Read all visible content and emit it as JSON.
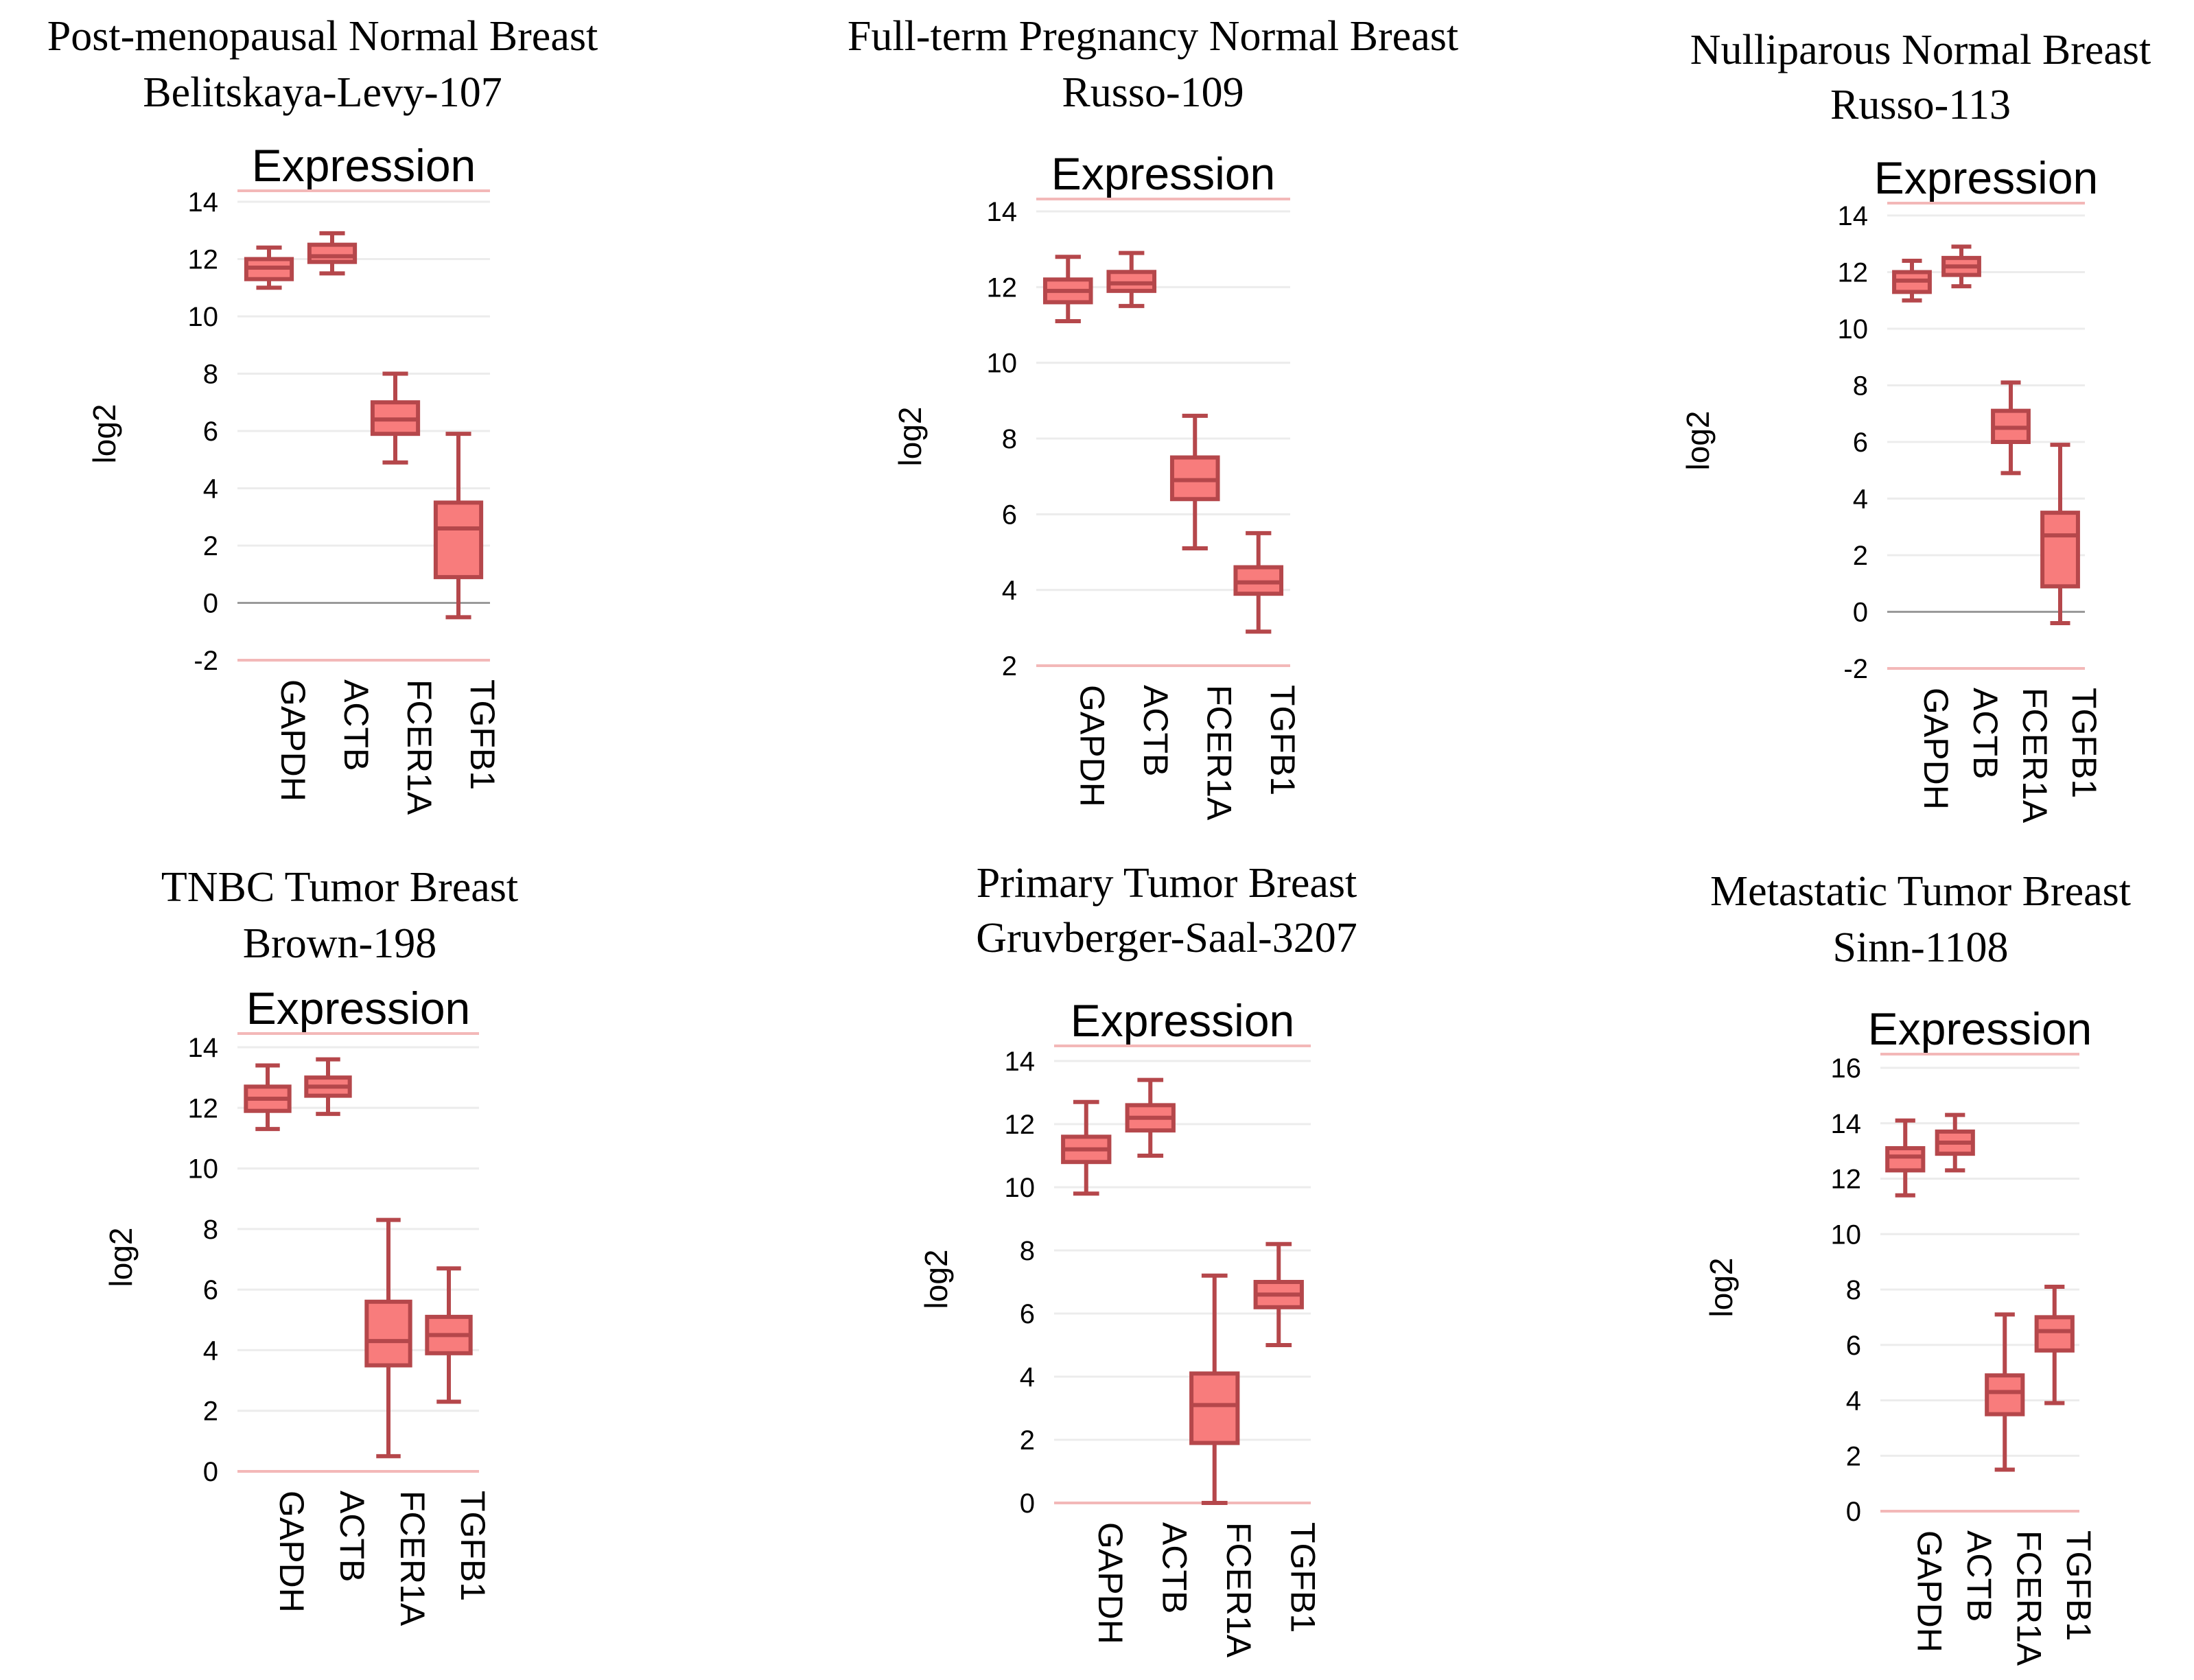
{
  "colors": {
    "box_fill": "#f87c7c",
    "box_stroke": "#b5474b",
    "gridline": "#ececec",
    "title_line": "#f3b8b8",
    "zero_line": "#9a9a9a",
    "text": "#000000"
  },
  "chart_data": [
    {
      "type": "box",
      "title_line1": "Post-menopausal Normal Breast",
      "title_line2": "Belitskaya-Levy-107",
      "plot_title": "Expression",
      "ylabel": "log2",
      "ylim": [
        -2,
        14
      ],
      "yticks": [
        "-2",
        "0",
        "2",
        "4",
        "6",
        "8",
        "10",
        "12",
        "14"
      ],
      "categories": [
        "GAPDH",
        "ACTB",
        "FCER1A",
        "TGFB1"
      ],
      "boxes": [
        {
          "min": 11.0,
          "q1": 11.3,
          "median": 11.7,
          "q3": 12.0,
          "max": 12.4
        },
        {
          "min": 11.5,
          "q1": 11.9,
          "median": 12.1,
          "q3": 12.5,
          "max": 12.9
        },
        {
          "min": 4.9,
          "q1": 5.9,
          "median": 6.4,
          "q3": 7.0,
          "max": 8.0
        },
        {
          "min": -0.5,
          "q1": 0.9,
          "median": 2.6,
          "q3": 3.5,
          "max": 5.9
        }
      ]
    },
    {
      "type": "box",
      "title_line1": "Full-term Pregnancy Normal Breast",
      "title_line2": "Russo-109",
      "plot_title": "Expression",
      "ylabel": "log2",
      "ylim": [
        2,
        14
      ],
      "yticks": [
        "2",
        "4",
        "6",
        "8",
        "10",
        "12",
        "14"
      ],
      "categories": [
        "GAPDH",
        "ACTB",
        "FCER1A",
        "TGFB1"
      ],
      "boxes": [
        {
          "min": 11.1,
          "q1": 11.6,
          "median": 11.9,
          "q3": 12.2,
          "max": 12.8
        },
        {
          "min": 11.5,
          "q1": 11.9,
          "median": 12.1,
          "q3": 12.4,
          "max": 12.9
        },
        {
          "min": 5.1,
          "q1": 6.4,
          "median": 6.9,
          "q3": 7.5,
          "max": 8.6
        },
        {
          "min": 2.9,
          "q1": 3.9,
          "median": 4.2,
          "q3": 4.6,
          "max": 5.5
        }
      ]
    },
    {
      "type": "box",
      "title_line1": "Nulliparous Normal Breast",
      "title_line2": "Russo-113",
      "plot_title": "Expression",
      "ylabel": "log2",
      "ylim": [
        -2,
        14
      ],
      "yticks": [
        "-2",
        "0",
        "2",
        "4",
        "6",
        "8",
        "10",
        "12",
        "14"
      ],
      "categories": [
        "GAPDH",
        "ACTB",
        "FCER1A",
        "TGFB1"
      ],
      "boxes": [
        {
          "min": 11.0,
          "q1": 11.3,
          "median": 11.7,
          "q3": 12.0,
          "max": 12.4
        },
        {
          "min": 11.5,
          "q1": 11.9,
          "median": 12.2,
          "q3": 12.5,
          "max": 12.9
        },
        {
          "min": 4.9,
          "q1": 6.0,
          "median": 6.5,
          "q3": 7.1,
          "max": 8.1
        },
        {
          "min": -0.4,
          "q1": 0.9,
          "median": 2.7,
          "q3": 3.5,
          "max": 5.9
        }
      ]
    },
    {
      "type": "box",
      "title_line1": "TNBC Tumor Breast",
      "title_line2": "Brown-198",
      "plot_title": "Expression",
      "ylabel": "log2",
      "ylim": [
        0,
        14
      ],
      "yticks": [
        "0",
        "2",
        "4",
        "6",
        "8",
        "10",
        "12",
        "14"
      ],
      "categories": [
        "GAPDH",
        "ACTB",
        "FCER1A",
        "TGFB1"
      ],
      "boxes": [
        {
          "min": 11.3,
          "q1": 11.9,
          "median": 12.3,
          "q3": 12.7,
          "max": 13.4
        },
        {
          "min": 11.8,
          "q1": 12.4,
          "median": 12.7,
          "q3": 13.0,
          "max": 13.6
        },
        {
          "min": 0.5,
          "q1": 3.5,
          "median": 4.3,
          "q3": 5.6,
          "max": 8.3
        },
        {
          "min": 2.3,
          "q1": 3.9,
          "median": 4.5,
          "q3": 5.1,
          "max": 6.7
        }
      ]
    },
    {
      "type": "box",
      "title_line1": "Primary Tumor Breast",
      "title_line2": "Gruvberger-Saal-3207",
      "plot_title": "Expression",
      "ylabel": "log2",
      "ylim": [
        0,
        14
      ],
      "yticks": [
        "0",
        "2",
        "4",
        "6",
        "8",
        "10",
        "12",
        "14"
      ],
      "categories": [
        "GAPDH",
        "ACTB",
        "FCER1A",
        "TGFB1"
      ],
      "boxes": [
        {
          "min": 9.8,
          "q1": 10.8,
          "median": 11.2,
          "q3": 11.6,
          "max": 12.7
        },
        {
          "min": 11.0,
          "q1": 11.8,
          "median": 12.2,
          "q3": 12.6,
          "max": 13.4
        },
        {
          "min": 0.0,
          "q1": 1.9,
          "median": 3.1,
          "q3": 4.1,
          "max": 7.2
        },
        {
          "min": 5.0,
          "q1": 6.2,
          "median": 6.6,
          "q3": 7.0,
          "max": 8.2
        }
      ]
    },
    {
      "type": "box",
      "title_line1": "Metastatic Tumor Breast",
      "title_line2": "Sinn-1108",
      "plot_title": "Expression",
      "ylabel": "log2",
      "ylim": [
        0,
        16
      ],
      "yticks": [
        "0",
        "2",
        "4",
        "6",
        "8",
        "10",
        "12",
        "14",
        "16"
      ],
      "categories": [
        "GAPDH",
        "ACTB",
        "FCER1A",
        "TGFB1"
      ],
      "boxes": [
        {
          "min": 11.4,
          "q1": 12.3,
          "median": 12.8,
          "q3": 13.1,
          "max": 14.1
        },
        {
          "min": 12.3,
          "q1": 12.9,
          "median": 13.3,
          "q3": 13.7,
          "max": 14.3
        },
        {
          "min": 1.5,
          "q1": 3.5,
          "median": 4.3,
          "q3": 4.9,
          "max": 7.1
        },
        {
          "min": 3.9,
          "q1": 5.8,
          "median": 6.5,
          "q3": 7.0,
          "max": 8.1
        }
      ]
    }
  ]
}
